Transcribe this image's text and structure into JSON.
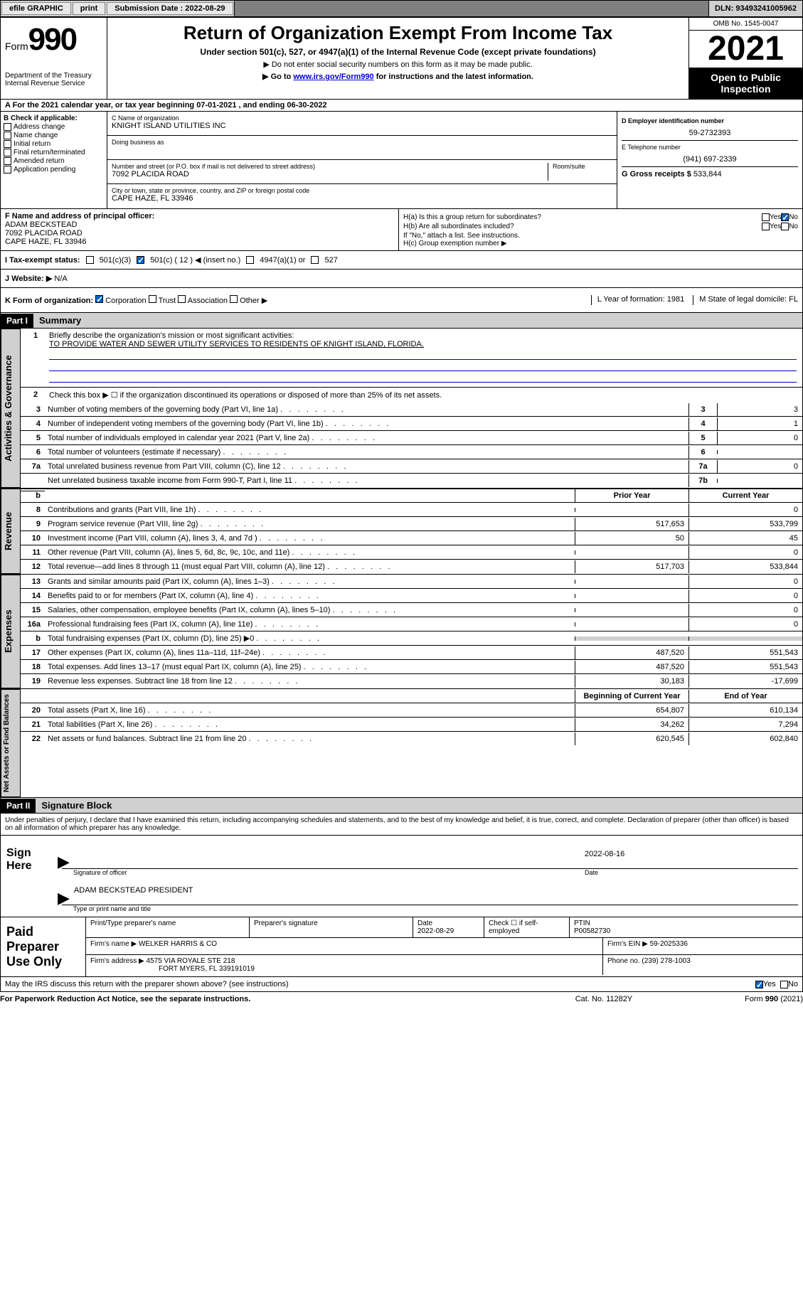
{
  "topbar": {
    "efile": "efile GRAPHIC",
    "print": "print",
    "submission_label": "Submission Date :",
    "submission_date": "2022-08-29",
    "dln_label": "DLN:",
    "dln": "93493241005962"
  },
  "header": {
    "form_prefix": "Form",
    "form_num": "990",
    "dept": "Department of the Treasury Internal Revenue Service",
    "title": "Return of Organization Exempt From Income Tax",
    "sub": "Under section 501(c), 527, or 4947(a)(1) of the Internal Revenue Code (except private foundations)",
    "note1": "▶ Do not enter social security numbers on this form as it may be made public.",
    "note2_pre": "▶ Go to ",
    "note2_link": "www.irs.gov/Form990",
    "note2_post": " for instructions and the latest information.",
    "omb": "OMB No. 1545-0047",
    "year": "2021",
    "open": "Open to Public Inspection"
  },
  "rowA": "A For the 2021 calendar year, or tax year beginning 07-01-2021   , and ending 06-30-2022",
  "colB": {
    "hdr": "B Check if applicable:",
    "items": [
      "Address change",
      "Name change",
      "Initial return",
      "Final return/terminated",
      "Amended return",
      "Application pending"
    ]
  },
  "colC": {
    "name_lbl": "C Name of organization",
    "name": "KNIGHT ISLAND UTILITIES INC",
    "dba_lbl": "Doing business as",
    "dba": "",
    "street_lbl": "Number and street (or P.O. box if mail is not delivered to street address)",
    "street": "7092 PLACIDA ROAD",
    "room_lbl": "Room/suite",
    "city_lbl": "City or town, state or province, country, and ZIP or foreign postal code",
    "city": "CAPE HAZE, FL  33946"
  },
  "colD": {
    "ein_lbl": "D Employer identification number",
    "ein": "59-2732393",
    "tel_lbl": "E Telephone number",
    "tel": "(941) 697-2339",
    "gross_lbl": "G Gross receipts $",
    "gross": "533,844"
  },
  "rowF": {
    "lbl": "F Name and address of principal officer:",
    "name": "ADAM BECKSTEAD",
    "street": "7092 PLACIDA ROAD",
    "city": "CAPE HAZE, FL  33946"
  },
  "rowH": {
    "a": "H(a)  Is this a group return for subordinates?",
    "b": "H(b)  Are all subordinates included?",
    "note": "If \"No,\" attach a list. See instructions.",
    "c": "H(c)  Group exemption number ▶",
    "yes": "Yes",
    "no": "No"
  },
  "rowI": {
    "lbl": "I   Tax-exempt status:",
    "o1": "501(c)(3)",
    "o2": "501(c) ( 12 ) ◀ (insert no.)",
    "o3": "4947(a)(1) or",
    "o4": "527"
  },
  "rowJ": {
    "lbl": "J   Website: ▶",
    "val": "N/A"
  },
  "rowK": {
    "lbl": "K Form of organization:",
    "o1": "Corporation",
    "o2": "Trust",
    "o3": "Association",
    "o4": "Other ▶",
    "L": "L Year of formation: 1981",
    "M": "M State of legal domicile: FL"
  },
  "part1": {
    "hdr": "Part I",
    "title": "Summary",
    "q1": "Briefly describe the organization's mission or most significant activities:",
    "mission": "TO PROVIDE WATER AND SEWER UTILITY SERVICES TO RESIDENTS OF KNIGHT ISLAND, FLORIDA.",
    "q2": "Check this box ▶ ☐  if the organization discontinued its operations or disposed of more than 25% of its net assets.",
    "lines_single": [
      {
        "n": "3",
        "d": "Number of voting members of the governing body (Part VI, line 1a)",
        "box": "3",
        "v": "3"
      },
      {
        "n": "4",
        "d": "Number of independent voting members of the governing body (Part VI, line 1b)",
        "box": "4",
        "v": "1"
      },
      {
        "n": "5",
        "d": "Total number of individuals employed in calendar year 2021 (Part V, line 2a)",
        "box": "5",
        "v": "0"
      },
      {
        "n": "6",
        "d": "Total number of volunteers (estimate if necessary)",
        "box": "6",
        "v": ""
      },
      {
        "n": "7a",
        "d": "Total unrelated business revenue from Part VIII, column (C), line 12",
        "box": "7a",
        "v": "0"
      },
      {
        "n": "",
        "d": "Net unrelated business taxable income from Form 990-T, Part I, line 11",
        "box": "7b",
        "v": ""
      }
    ],
    "col_prior": "Prior Year",
    "col_curr": "Current Year",
    "lines_rev": [
      {
        "n": "8",
        "d": "Contributions and grants (Part VIII, line 1h)",
        "p": "",
        "c": "0"
      },
      {
        "n": "9",
        "d": "Program service revenue (Part VIII, line 2g)",
        "p": "517,653",
        "c": "533,799"
      },
      {
        "n": "10",
        "d": "Investment income (Part VIII, column (A), lines 3, 4, and 7d )",
        "p": "50",
        "c": "45"
      },
      {
        "n": "11",
        "d": "Other revenue (Part VIII, column (A), lines 5, 6d, 8c, 9c, 10c, and 11e)",
        "p": "",
        "c": "0"
      },
      {
        "n": "12",
        "d": "Total revenue—add lines 8 through 11 (must equal Part VIII, column (A), line 12)",
        "p": "517,703",
        "c": "533,844"
      }
    ],
    "lines_exp": [
      {
        "n": "13",
        "d": "Grants and similar amounts paid (Part IX, column (A), lines 1–3)",
        "p": "",
        "c": "0"
      },
      {
        "n": "14",
        "d": "Benefits paid to or for members (Part IX, column (A), line 4)",
        "p": "",
        "c": "0"
      },
      {
        "n": "15",
        "d": "Salaries, other compensation, employee benefits (Part IX, column (A), lines 5–10)",
        "p": "",
        "c": "0"
      },
      {
        "n": "16a",
        "d": "Professional fundraising fees (Part IX, column (A), line 11e)",
        "p": "",
        "c": "0"
      },
      {
        "n": "b",
        "d": "Total fundraising expenses (Part IX, column (D), line 25) ▶0",
        "p": "GREY",
        "c": "GREY"
      },
      {
        "n": "17",
        "d": "Other expenses (Part IX, column (A), lines 11a–11d, 11f–24e)",
        "p": "487,520",
        "c": "551,543"
      },
      {
        "n": "18",
        "d": "Total expenses. Add lines 13–17 (must equal Part IX, column (A), line 25)",
        "p": "487,520",
        "c": "551,543"
      },
      {
        "n": "19",
        "d": "Revenue less expenses. Subtract line 18 from line 12",
        "p": "30,183",
        "c": "-17,699"
      }
    ],
    "col_beg": "Beginning of Current Year",
    "col_end": "End of Year",
    "lines_net": [
      {
        "n": "20",
        "d": "Total assets (Part X, line 16)",
        "p": "654,807",
        "c": "610,134"
      },
      {
        "n": "21",
        "d": "Total liabilities (Part X, line 26)",
        "p": "34,262",
        "c": "7,294"
      },
      {
        "n": "22",
        "d": "Net assets or fund balances. Subtract line 21 from line 20",
        "p": "620,545",
        "c": "602,840"
      }
    ],
    "vert1": "Activities & Governance",
    "vert2": "Revenue",
    "vert3": "Expenses",
    "vert4": "Net Assets or Fund Balances"
  },
  "part2": {
    "hdr": "Part II",
    "title": "Signature Block",
    "decl": "Under penalties of perjury, I declare that I have examined this return, including accompanying schedules and statements, and to the best of my knowledge and belief, it is true, correct, and complete. Declaration of preparer (other than officer) is based on all information of which preparer has any knowledge."
  },
  "sign": {
    "lbl": "Sign Here",
    "sig_of_officer": "Signature of officer",
    "date_lbl": "Date",
    "date": "2022-08-16",
    "name": "ADAM BECKSTEAD PRESIDENT",
    "name_lbl": "Type or print name and title"
  },
  "paid": {
    "lbl": "Paid Preparer Use Only",
    "c1": "Print/Type preparer's name",
    "c2": "Preparer's signature",
    "c3": "Date",
    "c3v": "2022-08-29",
    "c4": "Check ☐ if self-employed",
    "c5": "PTIN",
    "c5v": "P00582730",
    "firm_name_lbl": "Firm's name    ▶",
    "firm_name": "WELKER HARRIS & CO",
    "firm_ein_lbl": "Firm's EIN ▶",
    "firm_ein": "59-2025336",
    "firm_addr_lbl": "Firm's address ▶",
    "firm_addr1": "4575 VIA ROYALE STE 218",
    "firm_addr2": "FORT MYERS, FL  339191019",
    "phone_lbl": "Phone no.",
    "phone": "(239) 278-1003"
  },
  "may_irs": {
    "q": "May the IRS discuss this return with the preparer shown above? (see instructions)",
    "yes": "Yes",
    "no": "No"
  },
  "footer": {
    "a": "For Paperwork Reduction Act Notice, see the separate instructions.",
    "b": "Cat. No. 11282Y",
    "c": "Form 990 (2021)"
  }
}
